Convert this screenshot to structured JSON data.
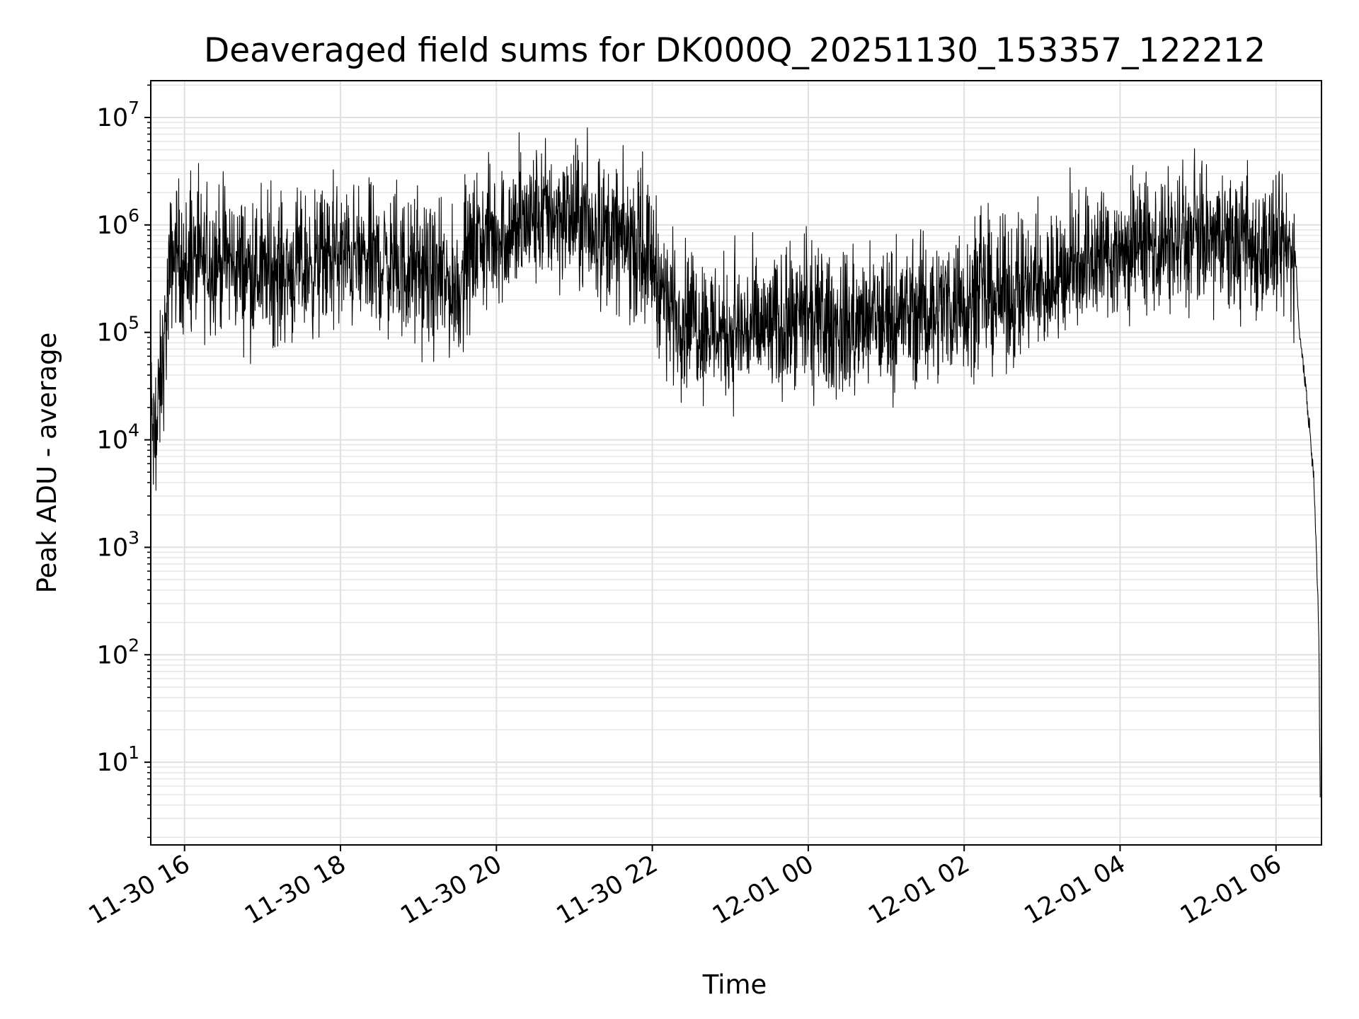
{
  "chart_data": {
    "type": "line",
    "title": "Deaveraged field sums for DK000Q_20251130_153357_122212",
    "xlabel": "Time",
    "ylabel": "Peak ADU - average",
    "yscale": "log",
    "grid": true,
    "legend": "none",
    "xlim": [
      "2025-11-30 15:34",
      "2025-12-01 06:35"
    ],
    "ylim": [
      1.7,
      22000000
    ],
    "x_ticks": [
      {
        "value": "2025-11-30 16:00",
        "label": "11-30 16"
      },
      {
        "value": "2025-11-30 18:00",
        "label": "11-30 18"
      },
      {
        "value": "2025-11-30 20:00",
        "label": "11-30 20"
      },
      {
        "value": "2025-11-30 22:00",
        "label": "11-30 22"
      },
      {
        "value": "2025-12-01 00:00",
        "label": "12-01 00"
      },
      {
        "value": "2025-12-01 02:00",
        "label": "12-01 02"
      },
      {
        "value": "2025-12-01 04:00",
        "label": "12-01 04"
      },
      {
        "value": "2025-12-01 06:00",
        "label": "12-01 06"
      }
    ],
    "y_ticks": [
      {
        "value": 10,
        "base": "10",
        "exp": "1"
      },
      {
        "value": 100,
        "base": "10",
        "exp": "2"
      },
      {
        "value": 1000,
        "base": "10",
        "exp": "3"
      },
      {
        "value": 10000,
        "base": "10",
        "exp": "4"
      },
      {
        "value": 100000,
        "base": "10",
        "exp": "5"
      },
      {
        "value": 1000000,
        "base": "10",
        "exp": "6"
      },
      {
        "value": 10000000,
        "base": "10",
        "exp": "7"
      }
    ],
    "series": [
      {
        "color": "#000000",
        "x": [
          "2025-11-30 15:34",
          "2025-11-30 15:36",
          "2025-11-30 15:38",
          "2025-11-30 15:40",
          "2025-11-30 15:42",
          "2025-11-30 15:45",
          "2025-11-30 15:47",
          "2025-11-30 15:50",
          "2025-11-30 15:55",
          "2025-11-30 16:00",
          "2025-11-30 16:15",
          "2025-11-30 16:30",
          "2025-11-30 16:45",
          "2025-11-30 17:00",
          "2025-11-30 17:30",
          "2025-11-30 18:00",
          "2025-11-30 18:30",
          "2025-11-30 19:00",
          "2025-11-30 19:15",
          "2025-11-30 19:30",
          "2025-11-30 19:45",
          "2025-11-30 20:00",
          "2025-11-30 20:15",
          "2025-11-30 20:30",
          "2025-11-30 20:45",
          "2025-11-30 21:00",
          "2025-11-30 21:15",
          "2025-11-30 21:30",
          "2025-11-30 21:50",
          "2025-11-30 22:00",
          "2025-11-30 22:10",
          "2025-11-30 22:20",
          "2025-11-30 22:40",
          "2025-11-30 23:00",
          "2025-11-30 23:30",
          "2025-12-01 00:00",
          "2025-12-01 00:30",
          "2025-12-01 01:00",
          "2025-12-01 01:30",
          "2025-12-01 02:00",
          "2025-12-01 02:30",
          "2025-12-01 03:00",
          "2025-12-01 03:15",
          "2025-12-01 03:30",
          "2025-12-01 04:00",
          "2025-12-01 04:30",
          "2025-12-01 05:00",
          "2025-12-01 05:30",
          "2025-12-01 06:00",
          "2025-12-01 06:12",
          "2025-12-01 06:15",
          "2025-12-01 06:18",
          "2025-12-01 06:22",
          "2025-12-01 06:26",
          "2025-12-01 06:29",
          "2025-12-01 06:31",
          "2025-12-01 06:33",
          "2025-12-01 06:34"
        ],
        "y": [
          20000,
          10000,
          8000,
          20000,
          40000,
          80000,
          200000,
          500000,
          600000,
          400000,
          450000,
          500000,
          400000,
          350000,
          400000,
          500000,
          450000,
          350000,
          300000,
          250000,
          700000,
          800000,
          900000,
          1200000,
          1300000,
          1100000,
          900000,
          800000,
          600000,
          500000,
          200000,
          150000,
          120000,
          100000,
          110000,
          120000,
          110000,
          130000,
          160000,
          200000,
          220000,
          250000,
          350000,
          500000,
          550000,
          650000,
          700000,
          650000,
          600000,
          550000,
          500000,
          100000,
          40000,
          12000,
          5000,
          1000,
          150,
          4
        ]
      }
    ]
  }
}
